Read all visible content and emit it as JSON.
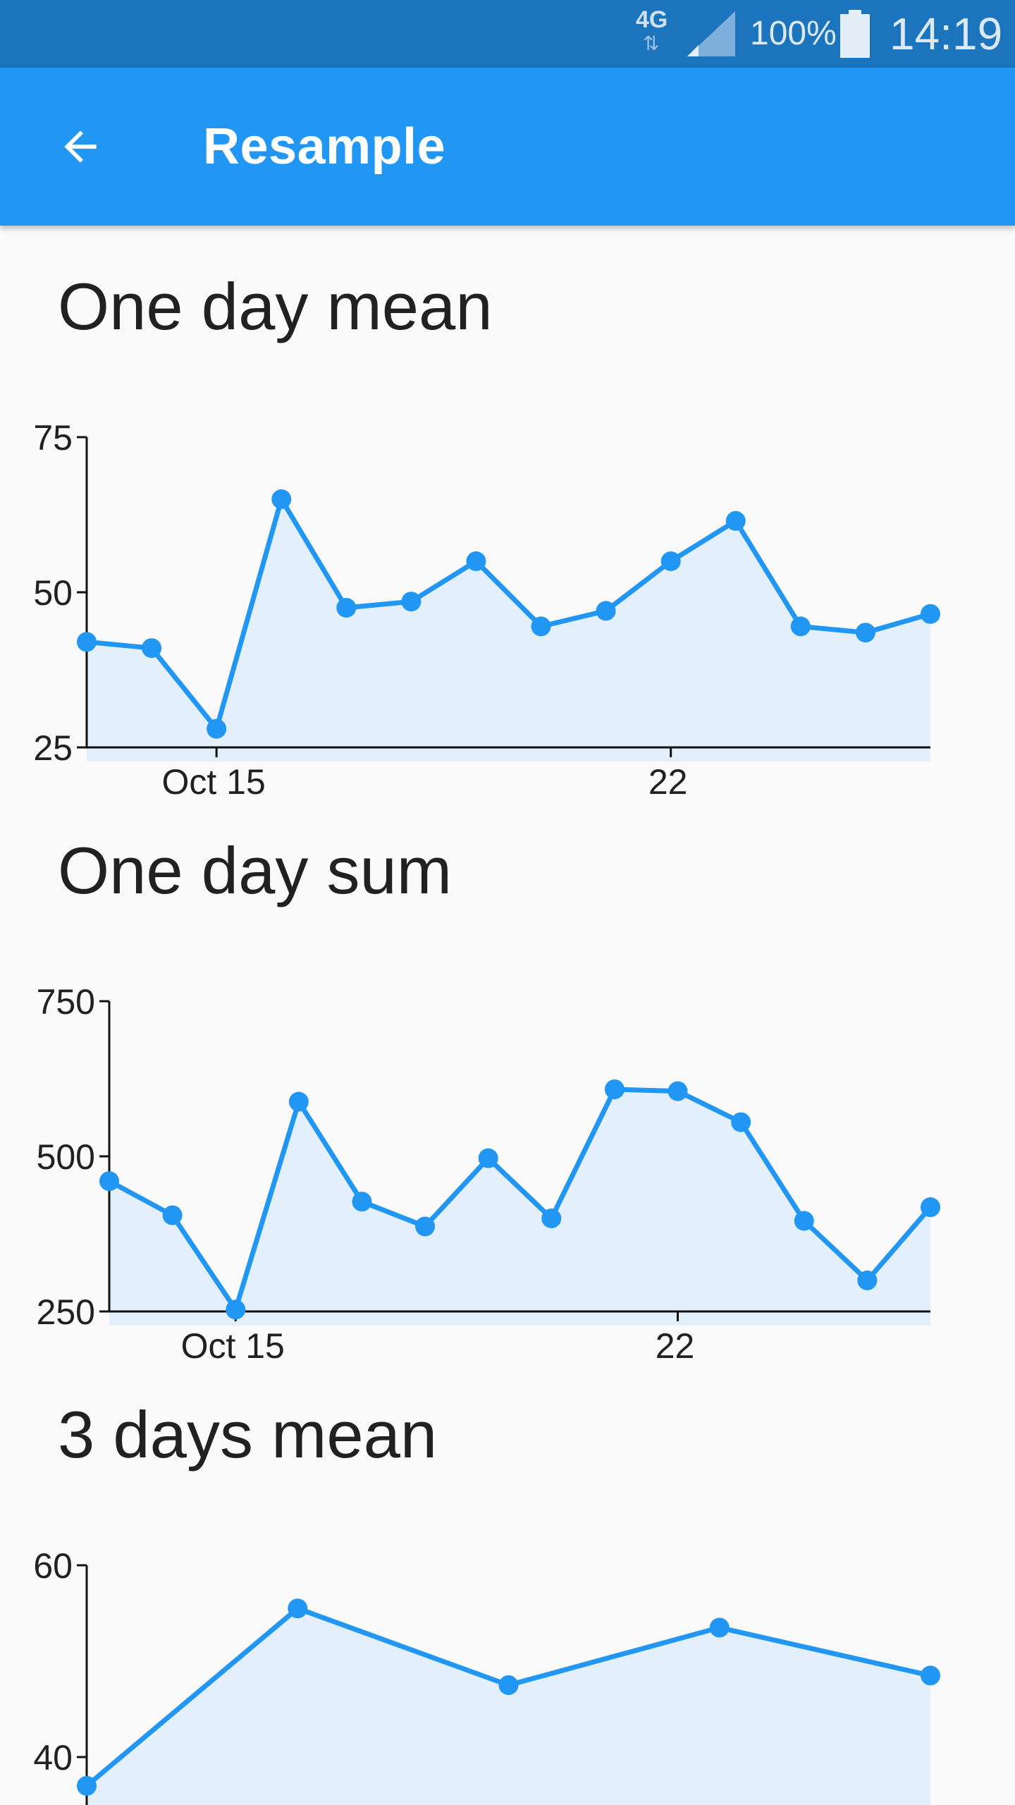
{
  "status_bar": {
    "network": "4G",
    "network_arrows": "⇅",
    "battery_percent": "100%",
    "time": "14:19"
  },
  "app_bar": {
    "title": "Resample",
    "back_icon": "arrow-back-icon",
    "background": "#2196f3"
  },
  "colors": {
    "line": "#2196f3",
    "area": "#e3effa",
    "axis": "#111111",
    "status_bar": "#1c74bd"
  },
  "sections": [
    {
      "title": "One day mean"
    },
    {
      "title": "One day sum"
    },
    {
      "title": "3 days mean"
    }
  ],
  "chart_data": [
    {
      "type": "area",
      "title": "One day mean",
      "x": [
        "2018-10-12",
        "2018-10-13",
        "2018-10-14",
        "2018-10-15",
        "2018-10-16",
        "2018-10-17",
        "2018-10-18",
        "2018-10-19",
        "2018-10-20",
        "2018-10-21",
        "2018-10-22",
        "2018-10-23",
        "2018-10-24",
        "2018-10-25"
      ],
      "values": [
        42,
        41,
        28,
        65,
        47.5,
        48.5,
        55,
        44.5,
        47,
        55,
        61.5,
        44.5,
        43.5,
        46.5
      ],
      "ylim": [
        25,
        75
      ],
      "yticks": [
        "25",
        "50",
        "75"
      ],
      "xticks": [
        {
          "value": "2018-10-14",
          "label": "Oct 15"
        },
        {
          "value": "2018-10-21",
          "label": "22"
        }
      ],
      "markers": true,
      "grid": false
    },
    {
      "type": "area",
      "title": "One day sum",
      "x": [
        "2018-10-12",
        "2018-10-13",
        "2018-10-14",
        "2018-10-15",
        "2018-10-16",
        "2018-10-17",
        "2018-10-18",
        "2018-10-19",
        "2018-10-20",
        "2018-10-21",
        "2018-10-22",
        "2018-10-23",
        "2018-10-24",
        "2018-10-25"
      ],
      "values": [
        460,
        405,
        253,
        588,
        427,
        387,
        497,
        400,
        608,
        605,
        555,
        396,
        300,
        418
      ],
      "ylim": [
        250,
        750
      ],
      "yticks": [
        "250",
        "500",
        "750"
      ],
      "xticks": [
        {
          "value": "2018-10-14",
          "label": "Oct 15"
        },
        {
          "value": "2018-10-21",
          "label": "22"
        }
      ],
      "markers": true,
      "grid": false
    },
    {
      "type": "area",
      "title": "3 days mean",
      "x": [
        "2018-10-12",
        "2018-10-15",
        "2018-10-18",
        "2018-10-21",
        "2018-10-24"
      ],
      "values": [
        37,
        55.5,
        47.5,
        53.5,
        48.5
      ],
      "ylim": [
        35,
        60
      ],
      "yticks": [
        "40",
        "60"
      ],
      "ytick_values": [
        40,
        60
      ],
      "xticks": [],
      "markers": true,
      "grid": false
    }
  ]
}
